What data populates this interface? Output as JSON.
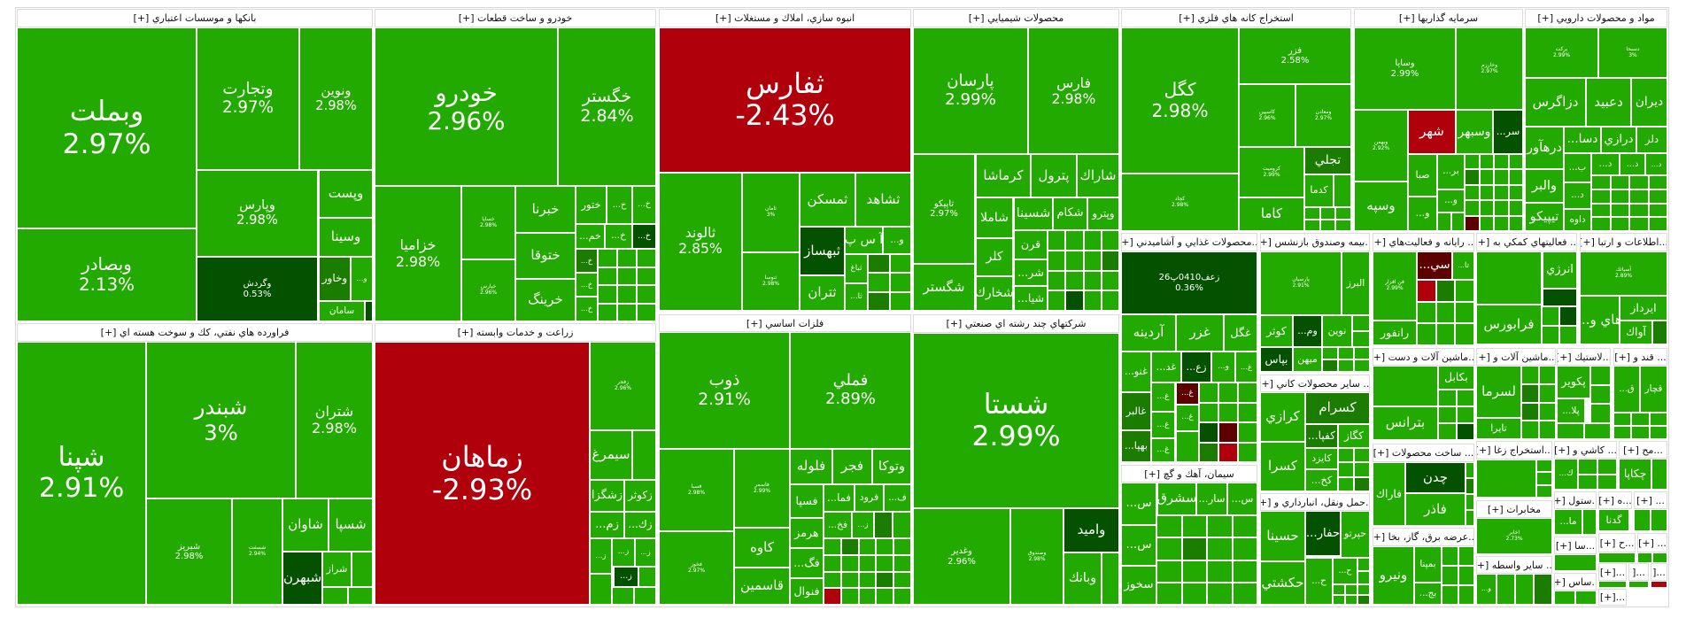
{
  "colors": {
    "up": "#22aa00",
    "upmid": "#1a7d00",
    "updark": "#045200",
    "down": "#b0000c",
    "downdark": "#5c0000"
  },
  "sectors": [
    {
      "title": "بانكها و موسسات اعتباري [+]",
      "tiles": [
        {
          "s": "وبملت",
          "c": "2.97%",
          "tone": "up"
        },
        {
          "s": "وبصادر",
          "c": "2.13%",
          "tone": "up"
        },
        {
          "s": "وتجارت",
          "c": "2.97%",
          "tone": "up"
        },
        {
          "s": "ونوين",
          "c": "2.98%",
          "tone": "up"
        },
        {
          "s": "وپارس",
          "c": "2.98%",
          "tone": "up"
        },
        {
          "s": "وپست",
          "tone": "up"
        },
        {
          "s": "وسينا",
          "tone": "up"
        },
        {
          "s": "وگردش",
          "c": "0.53%",
          "tone": "updark"
        },
        {
          "s": "وخاور",
          "tone": "upmid"
        },
        {
          "s": "و...",
          "tone": "up"
        },
        {
          "s": "سامان",
          "tone": "up"
        }
      ]
    },
    {
      "title": "خودرو و ساخت قطعات [+]",
      "tiles": [
        {
          "s": "خودرو",
          "c": "2.96%",
          "tone": "up"
        },
        {
          "s": "خگستر",
          "c": "2.84%",
          "tone": "up"
        },
        {
          "s": "خزاميا",
          "c": "2.98%",
          "tone": "up"
        },
        {
          "s": "خساپا",
          "c": "2.98%",
          "tone": "up"
        },
        {
          "s": "خپارس",
          "c": "2.96%",
          "tone": "up"
        },
        {
          "s": "خبرنا",
          "tone": "up"
        },
        {
          "s": "ختوقا",
          "tone": "up"
        },
        {
          "s": "خرينگ",
          "tone": "up"
        },
        {
          "s": "ختور",
          "tone": "up"
        },
        {
          "s": "خ...",
          "tone": "up"
        },
        {
          "s": "خ...",
          "tone": "up"
        },
        {
          "s": "خم...",
          "tone": "up"
        },
        {
          "s": "خ...",
          "tone": "up"
        },
        {
          "s": "خ...",
          "tone": "updark"
        },
        {
          "s": "خ...",
          "tone": "upmid"
        },
        {
          "s": "خ...",
          "tone": "up"
        },
        {
          "s": "خ...",
          "tone": "up"
        }
      ]
    },
    {
      "title": "انبوه سازي، املاك و مستغلات [+]",
      "tiles": [
        {
          "s": "ثفارس",
          "c": "-2.43%",
          "tone": "down"
        },
        {
          "s": "ثالوند",
          "c": "2.85%",
          "tone": "up"
        },
        {
          "s": "ثامان",
          "c": "3%",
          "tone": "up"
        },
        {
          "s": "ثنوسا",
          "c": "2.98%",
          "tone": "up"
        },
        {
          "s": "ثمسكن",
          "tone": "up"
        },
        {
          "s": "ثشاهد",
          "tone": "up"
        },
        {
          "s": "ثبهساز",
          "tone": "updark"
        },
        {
          "s": "ثتران",
          "tone": "up"
        },
        {
          "s": "آ س پ",
          "tone": "up"
        },
        {
          "s": "و...",
          "tone": "up"
        },
        {
          "s": "ثباغ",
          "tone": "up"
        },
        {
          "s": "ثا...",
          "tone": "up"
        }
      ]
    },
    {
      "title": "محصولات شيميايي [+]",
      "tiles": [
        {
          "s": "پارسان",
          "c": "2.99%",
          "tone": "up"
        },
        {
          "s": "فارس",
          "c": "2.98%",
          "tone": "up"
        },
        {
          "s": "تاپيكو",
          "c": "2.97%",
          "tone": "up"
        },
        {
          "s": "شگستر",
          "tone": "up"
        },
        {
          "s": "كرماشا",
          "tone": "up"
        },
        {
          "s": "پترول",
          "tone": "up"
        },
        {
          "s": "شاراك",
          "tone": "up"
        },
        {
          "s": "شاملا",
          "tone": "up"
        },
        {
          "s": "شسينا",
          "tone": "up"
        },
        {
          "s": "شكام",
          "tone": "up"
        },
        {
          "s": "وپترو",
          "tone": "up"
        },
        {
          "s": "كلر",
          "tone": "up"
        },
        {
          "s": "شخارك",
          "tone": "up"
        },
        {
          "s": "قرن",
          "tone": "up"
        },
        {
          "s": "شر...",
          "tone": "up"
        },
        {
          "s": "شيا...",
          "tone": "up"
        }
      ]
    },
    {
      "title": "استخراج كانه هاي فلزي [+]",
      "tiles": [
        {
          "s": "كگل",
          "c": "2.98%",
          "tone": "up"
        },
        {
          "s": "كچاد",
          "c": "2.98%",
          "tone": "up"
        },
        {
          "s": "فزر",
          "c": "2.58%",
          "tone": "up"
        },
        {
          "s": "كاسپين",
          "c": "2.96%",
          "tone": "up"
        },
        {
          "s": "ومعادن",
          "c": "2.97%",
          "tone": "up"
        },
        {
          "s": "كرومیت",
          "c": "2.99%",
          "tone": "up"
        },
        {
          "s": "تجلي",
          "tone": "upmid"
        },
        {
          "s": "كدما",
          "tone": "up"
        },
        {
          "s": "كاما",
          "tone": "up"
        }
      ]
    },
    {
      "title": "سرمايه گذاريها [+]",
      "tiles": [
        {
          "s": "وسايا",
          "c": "2.99%",
          "tone": "up"
        },
        {
          "s": "وخارزم",
          "c": "2.97%",
          "tone": "up"
        },
        {
          "s": "وبهمن",
          "c": "2.92%",
          "tone": "up"
        },
        {
          "s": "وسپه",
          "tone": "up"
        },
        {
          "s": "شهر",
          "tone": "down"
        },
        {
          "s": "وسبهر",
          "tone": "up"
        },
        {
          "s": "سر...",
          "tone": "updark"
        },
        {
          "s": "صبا",
          "tone": "up"
        },
        {
          "s": "بر...",
          "tone": "up"
        },
        {
          "s": "و...",
          "tone": "up"
        },
        {
          "s": "و...",
          "tone": "up"
        }
      ]
    },
    {
      "title": "مواد و محصولات دارويي [+]",
      "tiles": [
        {
          "s": "بركت",
          "c": "2.99%",
          "tone": "up"
        },
        {
          "s": "دسبحا",
          "c": "3%",
          "tone": "up"
        },
        {
          "s": "دزاگرس",
          "tone": "up"
        },
        {
          "s": "دعبيد",
          "tone": "up"
        },
        {
          "s": "ديران",
          "tone": "up"
        },
        {
          "s": "درهآور",
          "tone": "up"
        },
        {
          "s": "والبر",
          "tone": "up"
        },
        {
          "s": "تيپيكو",
          "tone": "up"
        },
        {
          "s": "دسا...",
          "tone": "up"
        },
        {
          "s": "درازي",
          "tone": "up"
        },
        {
          "s": "دلر",
          "tone": "up"
        },
        {
          "s": "ب...",
          "tone": "up"
        },
        {
          "s": "د...",
          "tone": "up"
        },
        {
          "s": "د...",
          "tone": "up"
        },
        {
          "s": "د...",
          "tone": "up"
        },
        {
          "s": "د...",
          "tone": "up"
        },
        {
          "s": "داوه",
          "tone": "up"
        }
      ]
    },
    {
      "title": "...محصولات غذايي و آشاميدني [+]",
      "tiles": [
        {
          "s": "زعف0410پ26",
          "c": "0.36%",
          "tone": "updark"
        },
        {
          "s": "آردينه",
          "tone": "up"
        },
        {
          "s": "غزر",
          "tone": "up"
        },
        {
          "s": "غگل",
          "tone": "up"
        },
        {
          "s": "غنو...",
          "tone": "up"
        },
        {
          "s": "غالبر",
          "tone": "upmid"
        },
        {
          "s": "بهپا...",
          "tone": "upmid"
        },
        {
          "s": "غد...",
          "tone": "up"
        },
        {
          "s": "زع...",
          "tone": "updark"
        },
        {
          "s": "و...",
          "tone": "up"
        },
        {
          "s": "غ...",
          "tone": "up"
        },
        {
          "s": "غ...",
          "tone": "up"
        },
        {
          "s": "غ...",
          "tone": "downdark"
        },
        {
          "s": "غ...",
          "tone": "up"
        },
        {
          "s": "غ...",
          "tone": "up"
        },
        {
          "s": "غ...",
          "tone": "up"
        }
      ]
    },
    {
      "title": "سيمان، آهك و گچ [+]",
      "tiles": [
        {
          "s": "س...",
          "tone": "up"
        },
        {
          "s": "سشرق",
          "tone": "up"
        },
        {
          "s": "سار...",
          "tone": "up"
        },
        {
          "s": "س...",
          "tone": "up"
        },
        {
          "s": "س...",
          "tone": "up"
        },
        {
          "s": "سخوز",
          "tone": "up"
        }
      ]
    },
    {
      "title": "...بيمه وصندوق بازنشس [+]",
      "tiles": [
        {
          "s": "پارسيان",
          "c": "2.91%",
          "tone": "up"
        },
        {
          "s": "البرز",
          "tone": "up"
        },
        {
          "s": "كوثر",
          "tone": "up"
        },
        {
          "s": "وم...",
          "tone": "updark"
        },
        {
          "s": "نوين",
          "tone": "up"
        },
        {
          "s": "بپاس",
          "tone": "updark"
        },
        {
          "s": "ميهن",
          "tone": "up"
        }
      ]
    },
    {
      "title": "... ساير محصولات كاني [+]",
      "tiles": [
        {
          "s": "كرازي",
          "tone": "up"
        },
        {
          "s": "كسرام",
          "tone": "upmid"
        },
        {
          "s": "كفپا...",
          "tone": "upmid"
        },
        {
          "s": "كگاز",
          "tone": "up"
        },
        {
          "s": "كسرا",
          "tone": "up"
        },
        {
          "s": "كايزد",
          "tone": "up"
        },
        {
          "s": "كخ...",
          "tone": "up"
        }
      ]
    },
    {
      "title": "...حمل ونقل، انبارداري و [+]",
      "tiles": [
        {
          "s": "حسينا",
          "tone": "up"
        },
        {
          "s": "حفار...",
          "tone": "updark"
        },
        {
          "s": "حپرتو",
          "tone": "up"
        },
        {
          "s": "حكشتي",
          "tone": "up"
        },
        {
          "s": "ح...",
          "tone": "up"
        },
        {
          "s": "ح...",
          "tone": "up"
        }
      ]
    },
    {
      "title": "... رايانه و فعاليت‌هاي [+]",
      "tiles": [
        {
          "s": "فن افزار",
          "c": "2.99%",
          "tone": "up"
        },
        {
          "s": "سي...",
          "tone": "downdark"
        },
        {
          "s": "تا...",
          "tone": "up"
        },
        {
          "s": "رانفور",
          "tone": "up"
        }
      ]
    },
    {
      "title": "...ماشين آلات و دست [+]",
      "tiles": [
        {
          "s": "بكابل",
          "tone": "up"
        },
        {
          "s": "بترانس",
          "tone": "up"
        }
      ]
    },
    {
      "title": "... ساخت محصولات [+]",
      "tiles": [
        {
          "s": "فاراك",
          "tone": "up"
        },
        {
          "s": "چدن",
          "tone": "updark"
        },
        {
          "s": "فاذر",
          "tone": "up"
        }
      ]
    },
    {
      "title": "...عرضه برق، گاز، بخا [+]",
      "tiles": [
        {
          "s": "ونيرو",
          "tone": "up"
        },
        {
          "s": "بمپنا",
          "tone": "up"
        },
        {
          "s": "بج...",
          "tone": "up"
        }
      ]
    },
    {
      "title": "... فعاليتهاي كمكي به [+]",
      "tiles": [
        {
          "s": "انرژي",
          "tone": "up"
        },
        {
          "s": "فرابورس",
          "tone": "up"
        }
      ]
    },
    {
      "title": "...ماشين آلات و [+]",
      "tiles": [
        {
          "s": "لسرما",
          "tone": "up"
        },
        {
          "s": "تايرا",
          "tone": "up"
        }
      ]
    },
    {
      "title": "...استخراج زغا [+]",
      "tiles": []
    },
    {
      "title": "مخابرات [+]",
      "tiles": [
        {
          "s": "اخابر",
          "c": "2.73%",
          "tone": "up"
        }
      ]
    },
    {
      "title": "... ساير واسطه [+]",
      "tiles": [
        {
          "s": "و...",
          "tone": "up"
        }
      ]
    },
    {
      "title": "...اطلاعات و ارتبا [+]",
      "tiles": [
        {
          "s": "آسياتك",
          "c": "2.89%",
          "tone": "up"
        },
        {
          "s": "هاي و...",
          "tone": "up"
        },
        {
          "s": "ايرداز",
          "tone": "up"
        },
        {
          "s": "آواك",
          "tone": "up"
        }
      ]
    },
    {
      "title": "...لاستيك [+]",
      "tiles": [
        {
          "s": "پكوير",
          "tone": "up"
        },
        {
          "s": "پلا...",
          "tone": "up"
        }
      ]
    },
    {
      "title": "... قند و [+]",
      "tiles": [
        {
          "s": "ق...",
          "tone": "up"
        },
        {
          "s": "قچار",
          "tone": "up"
        }
      ]
    },
    {
      "title": "... كاشي و [+]",
      "tiles": [
        {
          "s": "ك...",
          "tone": "up"
        }
      ]
    },
    {
      "title": "...مح [+]",
      "tiles": [
        {
          "s": "چكاپا",
          "tone": "up"
        }
      ]
    },
    {
      "title": "...ستول [+]",
      "tiles": [
        {
          "s": "ما...",
          "tone": "up"
        }
      ]
    },
    {
      "title": "...ه [+]",
      "tiles": [
        {
          "s": "گدنا",
          "tone": "up"
        }
      ]
    },
    {
      "title": "... [+]",
      "tiles": []
    },
    {
      "title": "...سا [+]",
      "tiles": []
    },
    {
      "title": "...ح [+]",
      "tiles": []
    },
    {
      "title": "... [+]",
      "tiles": []
    },
    {
      "title": "...ساس [+]",
      "tiles": []
    },
    {
      "title": "...[+]",
      "tiles": []
    },
    {
      "title": "...[",
      "tiles": []
    },
    {
      "title": "...[",
      "tiles": []
    },
    {
      "title": "...[+]",
      "tiles": []
    },
    {
      "title": "فراورده هاي نفتي، كك و سوخت هسته اي [+]",
      "tiles": [
        {
          "s": "شپنا",
          "c": "2.91%",
          "tone": "up"
        },
        {
          "s": "شبندر",
          "c": "3%",
          "tone": "up"
        },
        {
          "s": "شتران",
          "c": "2.98%",
          "tone": "up"
        },
        {
          "s": "شبريز",
          "c": "2.98%",
          "tone": "up"
        },
        {
          "s": "شسفت",
          "c": "2.94%",
          "tone": "up"
        },
        {
          "s": "شاوان",
          "tone": "up"
        },
        {
          "s": "شسپا",
          "tone": "up"
        },
        {
          "s": "شبهرن",
          "tone": "updark"
        },
        {
          "s": "شراز",
          "tone": "up"
        }
      ]
    },
    {
      "title": "زراعت و خدمات وابسته [+]",
      "tiles": [
        {
          "s": "زماهان",
          "c": "-2.93%",
          "tone": "down"
        },
        {
          "s": "زفجر",
          "c": "2.96%",
          "tone": "up"
        },
        {
          "s": "سيمرغ",
          "tone": "up"
        },
        {
          "s": "زشگزا",
          "tone": "up"
        },
        {
          "s": "زكوثر",
          "tone": "up"
        },
        {
          "s": "زم...",
          "tone": "up"
        },
        {
          "s": "زك...",
          "tone": "up"
        },
        {
          "s": "ز...",
          "tone": "up"
        },
        {
          "s": "ز...",
          "tone": "up"
        },
        {
          "s": "ز...",
          "tone": "up"
        },
        {
          "s": "ز...",
          "tone": "updark"
        }
      ]
    },
    {
      "title": "فلزات اساسي [+]",
      "tiles": [
        {
          "s": "ذوب",
          "c": "2.91%",
          "tone": "up"
        },
        {
          "s": "فملي",
          "c": "2.89%",
          "tone": "up"
        },
        {
          "s": "فسبا",
          "c": "2.98%",
          "tone": "up"
        },
        {
          "s": "فخوز",
          "c": "2.97%",
          "tone": "up"
        },
        {
          "s": "فاسمر",
          "c": "2.99%",
          "tone": "up"
        },
        {
          "s": "كاوه",
          "tone": "up"
        },
        {
          "s": "قاسمين",
          "tone": "up"
        },
        {
          "s": "فلوله",
          "tone": "up"
        },
        {
          "s": "فجر",
          "tone": "up"
        },
        {
          "s": "وتوكا",
          "tone": "up"
        },
        {
          "s": "فسپا",
          "tone": "up"
        },
        {
          "s": "فما...",
          "tone": "up"
        },
        {
          "s": "فرود",
          "tone": "up"
        },
        {
          "s": "ف...",
          "tone": "up"
        },
        {
          "s": "هرمز",
          "tone": "up"
        },
        {
          "s": "فگ...",
          "tone": "up"
        },
        {
          "s": "فنوال",
          "tone": "up"
        },
        {
          "s": "فخ...",
          "tone": "up"
        },
        {
          "s": "ز...",
          "tone": "up"
        }
      ]
    },
    {
      "title": "شركتهاي چند رشته اي صنعتي [+]",
      "tiles": [
        {
          "s": "شستا",
          "c": "2.99%",
          "tone": "up"
        },
        {
          "s": "وغدير",
          "c": "2.96%",
          "tone": "up"
        },
        {
          "s": "وصندوق",
          "c": "2.98%",
          "tone": "up"
        },
        {
          "s": "واميد",
          "tone": "updark"
        },
        {
          "s": "وبانك",
          "tone": "up"
        }
      ]
    }
  ]
}
